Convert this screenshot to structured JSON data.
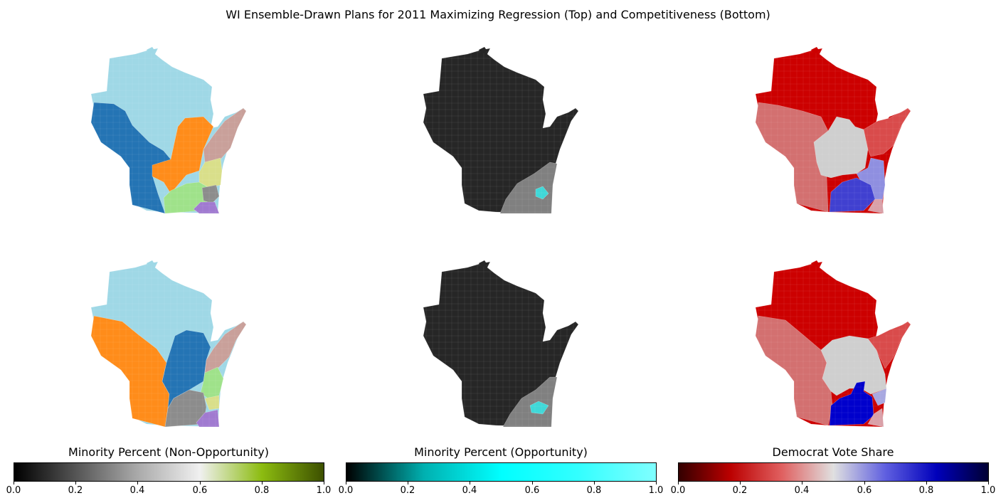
{
  "title": "WI Ensemble-Drawn Plans for 2011 Maximizing Regression (Top) and Competitiveness (Bottom)",
  "rows": [
    {
      "row": "top",
      "panels": [
        {
          "kind": "district-assignment",
          "regions": [
            {
              "name": "north",
              "color": "#9fd8e6"
            },
            {
              "name": "west",
              "color": "#2474b4"
            },
            {
              "name": "central",
              "color": "#ff8c1a"
            },
            {
              "name": "northeast-shore",
              "color": "#c9a09a"
            },
            {
              "name": "east-central",
              "color": "#d9df8a"
            },
            {
              "name": "south-central",
              "color": "#9fe28a"
            },
            {
              "name": "southeast-gray",
              "color": "#8c8c8c"
            },
            {
              "name": "southeast-purple",
              "color": "#a07ad0"
            }
          ]
        },
        {
          "kind": "minority-percent",
          "regions": [
            {
              "name": "statewide",
              "color": "#262626"
            },
            {
              "name": "southeast",
              "color": "#808080"
            },
            {
              "name": "opportunity",
              "color": "#3fd8d8"
            }
          ]
        },
        {
          "kind": "democrat-vote-share",
          "regions": [
            {
              "name": "north",
              "color": "#cc0000"
            },
            {
              "name": "west",
              "color": "#d37070"
            },
            {
              "name": "central",
              "color": "#cfcfcf"
            },
            {
              "name": "northeast-shore",
              "color": "#d94b4b"
            },
            {
              "name": "southeast-light",
              "color": "#8f8fe0"
            },
            {
              "name": "southeast-dark",
              "color": "#4040d0"
            },
            {
              "name": "southeast-corner",
              "color": "#d9a0a8"
            }
          ]
        }
      ]
    },
    {
      "row": "bottom",
      "panels": [
        {
          "kind": "district-assignment",
          "regions": [
            {
              "name": "north",
              "color": "#9fd8e6"
            },
            {
              "name": "west",
              "color": "#ff8c1a"
            },
            {
              "name": "central",
              "color": "#2474b4"
            },
            {
              "name": "northeast-shore",
              "color": "#c9a09a"
            },
            {
              "name": "east-central",
              "color": "#9fe28a"
            },
            {
              "name": "south-central",
              "color": "#8c8c8c"
            },
            {
              "name": "southeast-yellow",
              "color": "#d9df8a"
            },
            {
              "name": "southeast-purple",
              "color": "#a07ad0"
            }
          ]
        },
        {
          "kind": "minority-percent",
          "regions": [
            {
              "name": "statewide",
              "color": "#262626"
            },
            {
              "name": "southeast",
              "color": "#808080"
            },
            {
              "name": "opportunity",
              "color": "#3fd8d8"
            }
          ]
        },
        {
          "kind": "democrat-vote-share",
          "regions": [
            {
              "name": "north",
              "color": "#cc0000"
            },
            {
              "name": "west",
              "color": "#d37070"
            },
            {
              "name": "central",
              "color": "#cfcfcf"
            },
            {
              "name": "northeast-shore",
              "color": "#d94b4b"
            },
            {
              "name": "southeast-light",
              "color": "#a8a8e0"
            },
            {
              "name": "southeast-dark",
              "color": "#0000cc"
            },
            {
              "name": "southeast-corner",
              "color": "#d9a0a8"
            }
          ]
        }
      ]
    }
  ],
  "colorbars": [
    {
      "label": "Minority Percent (Non-Opportunity)",
      "range": [
        0.0,
        1.0
      ],
      "ticks": [
        "0.0",
        "0.2",
        "0.4",
        "0.6",
        "0.8",
        "1.0"
      ],
      "stops": [
        "#000000",
        "#555555",
        "#aaaaaa",
        "#f0f0f0",
        "#8cbc10",
        "#3d5000"
      ]
    },
    {
      "label": "Minority Percent (Opportunity)",
      "range": [
        0.0,
        1.0
      ],
      "ticks": [
        "0.0",
        "0.2",
        "0.4",
        "0.6",
        "0.8",
        "1.0"
      ],
      "stops": [
        "#000000",
        "#00b0b0",
        "#00ffff",
        "#33ffff",
        "#80ffff"
      ]
    },
    {
      "label": "Democrat Vote Share",
      "range": [
        0.0,
        1.0
      ],
      "ticks": [
        "0.0",
        "0.2",
        "0.4",
        "0.6",
        "0.8",
        "1.0"
      ],
      "stops": [
        "#330000",
        "#bb0000",
        "#e06060",
        "#e0e0e0",
        "#6060e0",
        "#0000bb",
        "#000033"
      ]
    }
  ]
}
